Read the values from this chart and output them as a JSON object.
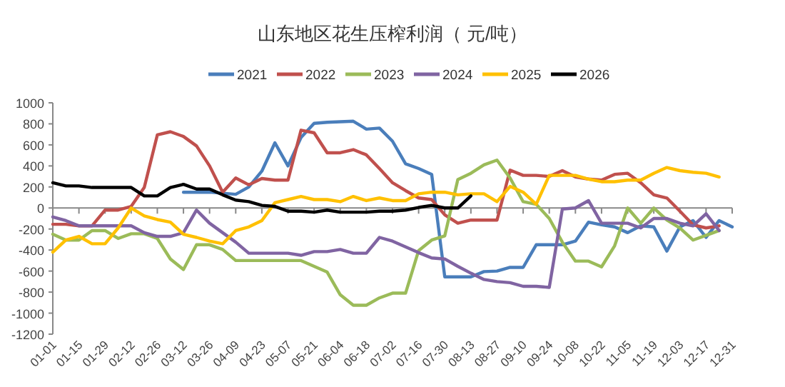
{
  "chart_data": {
    "type": "line",
    "title": "山东地区花生压榨利润（ 元/吨）",
    "categories": [
      "01-01",
      null,
      "01-15",
      null,
      "01-29",
      null,
      "02-12",
      null,
      "02-26",
      null,
      "03-12",
      null,
      "03-26",
      null,
      "04-09",
      null,
      "04-23",
      null,
      "05-07",
      null,
      "05-21",
      null,
      "06-04",
      null,
      "06-18",
      null,
      "07-02",
      null,
      "07-16",
      null,
      "07-30",
      null,
      "08-13",
      null,
      "08-27",
      null,
      "09-10",
      null,
      "09-24",
      null,
      "10-08",
      null,
      "10-22",
      null,
      "11-05",
      null,
      "11-19",
      null,
      "12-03",
      null,
      "12-17",
      null,
      "12-31"
    ],
    "series": [
      {
        "name": "2021",
        "color": "#4a7ebb",
        "values": [
          null,
          null,
          null,
          null,
          null,
          null,
          null,
          null,
          null,
          null,
          150,
          150,
          150,
          140,
          130,
          200,
          350,
          620,
          400,
          670,
          805,
          815,
          820,
          825,
          750,
          760,
          635,
          420,
          375,
          320,
          -655,
          -655,
          -655,
          -605,
          -600,
          -565,
          -565,
          -350,
          -350,
          -350,
          -315,
          -135,
          -160,
          -180,
          -235,
          -170,
          -180,
          -410,
          -180,
          -120,
          -280,
          -120,
          -180
        ]
      },
      {
        "name": "2022",
        "color": "#c0504d",
        "values": [
          -155,
          -155,
          -170,
          -170,
          -20,
          -20,
          15,
          195,
          695,
          725,
          680,
          590,
          400,
          150,
          285,
          220,
          280,
          265,
          265,
          740,
          715,
          525,
          525,
          555,
          505,
          375,
          240,
          165,
          95,
          80,
          -65,
          -145,
          -115,
          -115,
          -115,
          360,
          310,
          310,
          300,
          355,
          295,
          275,
          265,
          320,
          330,
          240,
          125,
          95,
          -30,
          -160,
          -190,
          -170,
          null
        ]
      },
      {
        "name": "2023",
        "color": "#9bbb59",
        "values": [
          -250,
          -305,
          -305,
          -215,
          -215,
          -290,
          -245,
          -245,
          -290,
          -485,
          -585,
          -350,
          -350,
          -395,
          -500,
          -500,
          -500,
          -500,
          -500,
          -500,
          -555,
          -610,
          -825,
          -925,
          -925,
          -855,
          -810,
          -810,
          -405,
          -305,
          -265,
          270,
          330,
          410,
          455,
          285,
          60,
          35,
          -100,
          -325,
          -505,
          -505,
          -560,
          -360,
          0,
          -145,
          0,
          -115,
          -190,
          -305,
          -260,
          -215,
          null
        ]
      },
      {
        "name": "2024",
        "color": "#8064a2",
        "values": [
          -85,
          -120,
          -170,
          -170,
          -170,
          -170,
          -170,
          -235,
          -270,
          -270,
          -235,
          -20,
          -145,
          -235,
          -325,
          -430,
          -430,
          -430,
          -430,
          -450,
          -415,
          -415,
          -395,
          -430,
          -430,
          -280,
          -315,
          -370,
          -425,
          -475,
          -485,
          -555,
          -620,
          -680,
          -700,
          -710,
          -745,
          -745,
          -755,
          -10,
          0,
          70,
          -145,
          -145,
          -145,
          -190,
          -100,
          -100,
          -145,
          -170,
          -55,
          -215,
          null
        ]
      },
      {
        "name": "2025",
        "color": "#ffc000",
        "values": [
          -420,
          -305,
          -270,
          -340,
          -340,
          -190,
          0,
          -75,
          -110,
          -135,
          -250,
          -280,
          -315,
          -340,
          -215,
          -180,
          -120,
          50,
          80,
          110,
          80,
          80,
          60,
          110,
          70,
          95,
          70,
          70,
          135,
          150,
          150,
          125,
          135,
          135,
          60,
          205,
          150,
          35,
          310,
          310,
          310,
          275,
          250,
          250,
          265,
          265,
          330,
          385,
          355,
          340,
          330,
          295,
          null
        ]
      },
      {
        "name": "2026",
        "color": "#000000",
        "values": [
          240,
          210,
          210,
          195,
          195,
          195,
          195,
          115,
          115,
          195,
          225,
          180,
          180,
          125,
          75,
          60,
          25,
          15,
          -30,
          -30,
          -40,
          -20,
          -40,
          -40,
          -40,
          -30,
          -30,
          -20,
          5,
          25,
          0,
          0,
          115,
          null,
          null,
          null,
          null,
          null,
          null,
          null,
          null,
          null,
          null,
          null,
          null,
          null,
          null,
          null,
          null,
          null,
          null,
          null,
          null
        ]
      }
    ],
    "ylim": [
      -1200,
      1000
    ],
    "yticks": [
      -1200,
      -1000,
      -800,
      -600,
      -400,
      -200,
      0,
      200,
      400,
      600,
      800,
      1000
    ],
    "legend": "top"
  }
}
